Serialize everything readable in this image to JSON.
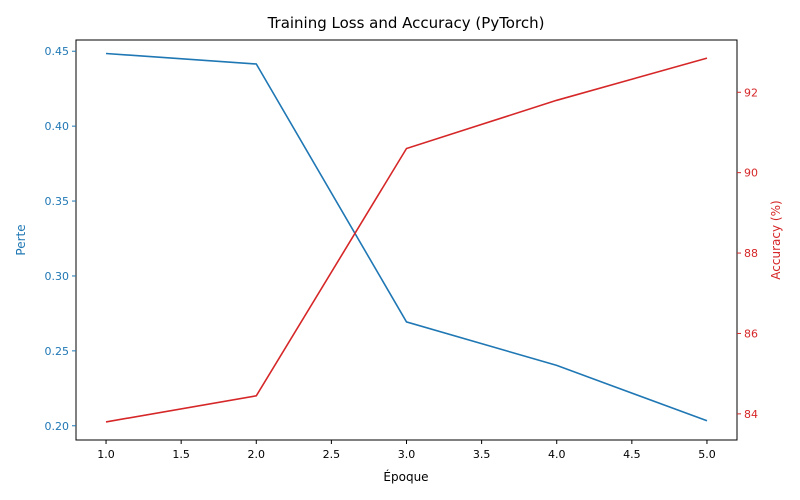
{
  "chart_data": {
    "type": "line",
    "title": "Training Loss and Accuracy (PyTorch)",
    "xlabel": "Époque",
    "x": [
      1,
      2,
      3,
      4,
      5
    ],
    "xlim": [
      0.8,
      5.2
    ],
    "xticks": [
      "1.0",
      "1.5",
      "2.0",
      "2.5",
      "3.0",
      "3.5",
      "4.0",
      "4.5",
      "5.0"
    ],
    "grid": false,
    "axes": {
      "left": {
        "label": "Perte",
        "color": "#1f77b4",
        "ylim": [
          0.1905,
          0.4575
        ],
        "ticks": [
          "0.20",
          "0.25",
          "0.30",
          "0.35",
          "0.40",
          "0.45"
        ]
      },
      "right": {
        "label": "Accuracy (%)",
        "color": "#d62728",
        "ylim": [
          83.35,
          93.3
        ],
        "ticks": [
          "84",
          "86",
          "88",
          "90",
          "92"
        ]
      }
    },
    "series": [
      {
        "axis": "left",
        "color": "#1f77b4",
        "values": [
          0.4485,
          0.4415,
          0.2693,
          0.2403,
          0.2033
        ]
      },
      {
        "axis": "right",
        "color": "#d62728",
        "values": [
          83.8,
          84.45,
          90.6,
          91.8,
          92.85
        ]
      }
    ]
  }
}
